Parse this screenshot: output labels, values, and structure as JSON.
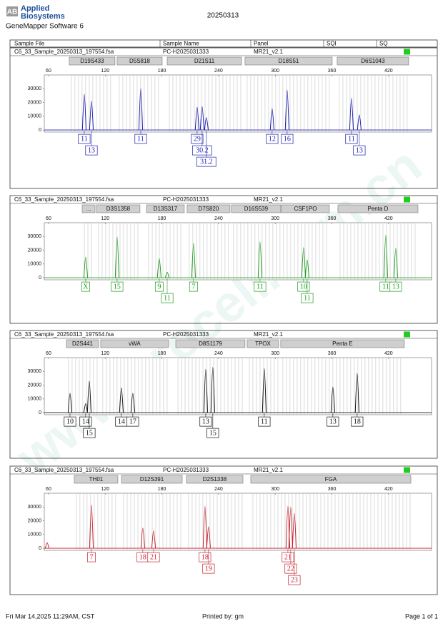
{
  "header": {
    "logo_mark": "AB",
    "logo_line1": "Applied",
    "logo_line2": "Biosystems",
    "software": "GeneMapper Software 6",
    "date": "20250313"
  },
  "columns": [
    "Sample File",
    "Sample Name",
    "Panel",
    "SQI",
    "SQ"
  ],
  "watermark": "www.procell.com.cn",
  "xlim": [
    55.5,
    465.5
  ],
  "xticks": [
    60,
    120,
    180,
    240,
    300,
    360,
    420
  ],
  "ylim": [
    -1500,
    40000
  ],
  "yticks": [
    0,
    10000,
    20000,
    30000
  ],
  "panels": [
    {
      "sample_file": "C6_33_Sample_20250313_197554.fsa",
      "sample_name": "PC-H2025031333",
      "panel": "MR21_v2.1",
      "color": "#1c1cae",
      "markers": [
        {
          "label": "D19S433",
          "range": [
            81.9,
            130.3
          ]
        },
        {
          "label": "D5S818",
          "range": [
            132.6,
            180.3
          ]
        },
        {
          "label": "D21S11",
          "range": [
            185.6,
            264.3
          ]
        },
        {
          "label": "D18S51",
          "range": [
            268.0,
            360.3
          ]
        },
        {
          "label": "D6S1043",
          "range": [
            365.6,
            441.2
          ]
        }
      ],
      "peaks": [
        {
          "x": 97.8,
          "height": 26000,
          "allele": "11"
        },
        {
          "x": 105.4,
          "height": 21000,
          "allele": "13"
        },
        {
          "x": 157.6,
          "height": 30000,
          "allele": "11"
        },
        {
          "x": 217.3,
          "height": 16500,
          "allele": "29"
        },
        {
          "x": 222.6,
          "height": 17000,
          "allele": "30.2"
        },
        {
          "x": 227.1,
          "height": 9000,
          "allele": "31.2"
        },
        {
          "x": 296.7,
          "height": 15500,
          "allele": "12"
        },
        {
          "x": 312.6,
          "height": 29000,
          "allele": "16"
        },
        {
          "x": 380.7,
          "height": 23000,
          "allele": "11"
        },
        {
          "x": 389.0,
          "height": 11000,
          "allele": "13"
        }
      ]
    },
    {
      "sample_file": "C6_33_Sample_20250313_197554.fsa",
      "sample_name": "PC-H2025031333",
      "panel": "MR21_v2.1",
      "color": "#1e9a1e",
      "markers": [
        {
          "label": "...",
          "range": [
            95.6,
            109.2
          ]
        },
        {
          "label": "D3S1358",
          "range": [
            110.7,
            156.8
          ]
        },
        {
          "label": "D13S317",
          "range": [
            163.7,
            203.7
          ]
        },
        {
          "label": "D7S820",
          "range": [
            206.7,
            252.1
          ]
        },
        {
          "label": "D16S539",
          "range": [
            253.6,
            305.8
          ]
        },
        {
          "label": "CSF1PO",
          "range": [
            306.6,
            357.3
          ]
        },
        {
          "label": "Penta D",
          "range": [
            366.4,
            451.1
          ]
        }
      ],
      "peaks": [
        {
          "x": 99.3,
          "height": 15000,
          "allele": "X"
        },
        {
          "x": 132.6,
          "height": 29500,
          "allele": "15"
        },
        {
          "x": 177.2,
          "height": 14000,
          "allele": "9"
        },
        {
          "x": 185.6,
          "height": 4000,
          "allele": "11"
        },
        {
          "x": 213.5,
          "height": 25000,
          "allele": "7"
        },
        {
          "x": 283.9,
          "height": 26000,
          "allele": "11"
        },
        {
          "x": 330.0,
          "height": 22000,
          "allele": "10"
        },
        {
          "x": 333.8,
          "height": 13000,
          "allele": "11"
        },
        {
          "x": 417.0,
          "height": 31000,
          "allele": "11"
        },
        {
          "x": 427.6,
          "height": 21500,
          "allele": "13"
        }
      ]
    },
    {
      "sample_file": "C6_33_Sample_20250313_197554.fsa",
      "sample_name": "PC-H2025031333",
      "panel": "MR21_v2.1",
      "color": "#111111",
      "markers": [
        {
          "label": "D2S441",
          "range": [
            78.9,
            113.0
          ]
        },
        {
          "label": "vWA",
          "range": [
            115.2,
            187.1
          ]
        },
        {
          "label": "D8S1179",
          "range": [
            194.7,
            268.0
          ]
        },
        {
          "label": "TPOX",
          "range": [
            270.3,
            303.6
          ]
        },
        {
          "label": "Penta E",
          "range": [
            305.8,
            436.7
          ]
        }
      ],
      "peaks": [
        {
          "x": 82.7,
          "height": 14000,
          "allele": "10"
        },
        {
          "x": 99.3,
          "height": 6500,
          "allele": "14"
        },
        {
          "x": 103.1,
          "height": 22800,
          "allele": "15"
        },
        {
          "x": 137.1,
          "height": 18000,
          "allele": "14"
        },
        {
          "x": 149.2,
          "height": 14000,
          "allele": "17"
        },
        {
          "x": 226.4,
          "height": 31500,
          "allele": "13"
        },
        {
          "x": 233.9,
          "height": 33000,
          "allele": "15"
        },
        {
          "x": 288.4,
          "height": 32000,
          "allele": "11"
        },
        {
          "x": 361.0,
          "height": 18600,
          "allele": "13"
        },
        {
          "x": 386.7,
          "height": 28500,
          "allele": "18"
        }
      ]
    },
    {
      "sample_file": "C6_33_Sample_20250313_197554.fsa",
      "sample_name": "PC-H2025031333",
      "panel": "MR21_v2.1",
      "color": "#c4202c",
      "markers": [
        {
          "label": "TH01",
          "range": [
            87.2,
            133.4
          ]
        },
        {
          "label": "D12S391",
          "range": [
            137.2,
            201.5
          ]
        },
        {
          "label": "D2S1338",
          "range": [
            206.0,
            265.8
          ]
        },
        {
          "label": "FGA",
          "range": [
            274.1,
            443.6
          ]
        }
      ],
      "peaks": [
        {
          "x": 58.5,
          "height": 4000
        },
        {
          "x": 105.4,
          "height": 31500,
          "allele": "7"
        },
        {
          "x": 159.8,
          "height": 14700,
          "allele": "18"
        },
        {
          "x": 171.2,
          "height": 12700,
          "allele": "21"
        },
        {
          "x": 225.6,
          "height": 30500,
          "allele": "18"
        },
        {
          "x": 229.4,
          "height": 15700,
          "allele": "19"
        },
        {
          "x": 313.4,
          "height": 30500,
          "allele": "21"
        },
        {
          "x": 316.4,
          "height": 30000,
          "allele": "22"
        },
        {
          "x": 320.2,
          "height": 25400,
          "allele": "23"
        }
      ]
    }
  ],
  "footer": {
    "printed_at": "Fri Mar 14,2025 11:29AM, CST",
    "printed_by": "Printed by: gm",
    "page": "Page 1 of 1"
  }
}
